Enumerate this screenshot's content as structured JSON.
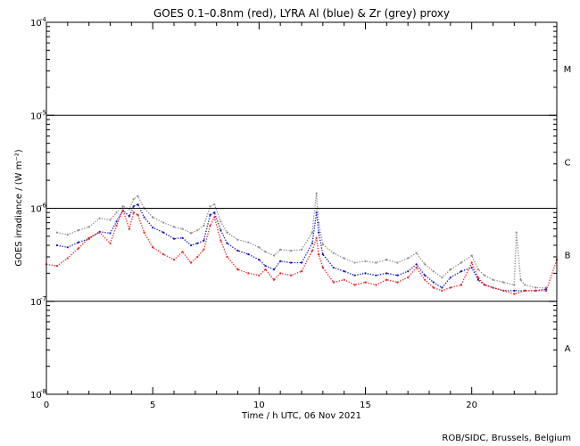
{
  "chart_data": {
    "type": "scatter",
    "title": "GOES 0.1–0.8nm (red), LYRA Al (blue) & Zr (grey) proxy",
    "xlabel": "Time / h UTC, 06 Nov 2021",
    "ylabel": "GOES irradiance / (W m⁻²)",
    "xlim": [
      0,
      24
    ],
    "x_ticks": [
      0,
      5,
      10,
      15,
      20
    ],
    "x_tick_labels": [
      "0",
      "5",
      "10",
      "15",
      "20"
    ],
    "ylim_log10": [
      -8,
      -4
    ],
    "y_ticks_log10": [
      -8,
      -7,
      -6,
      -5,
      -4
    ],
    "y_tick_labels": [
      {
        "base": "10",
        "exp": "-8"
      },
      {
        "base": "10",
        "exp": "-7"
      },
      {
        "base": "10",
        "exp": "-6"
      },
      {
        "base": "10",
        "exp": "-5"
      },
      {
        "base": "10",
        "exp": "-4"
      }
    ],
    "flare_class_lines_log10": [
      -7,
      -6,
      -5
    ],
    "flare_classes": [
      {
        "label": "M",
        "log10": -4.5
      },
      {
        "label": "C",
        "log10": -5.5
      },
      {
        "label": "B",
        "log10": -6.5
      },
      {
        "label": "A",
        "log10": -7.5
      }
    ],
    "series": [
      {
        "name": "GOES 0.1–0.8nm",
        "color": "#e8201c",
        "x": [
          0,
          0.5,
          1.0,
          1.5,
          2.0,
          2.5,
          3.0,
          3.3,
          3.6,
          3.9,
          4.1,
          4.3,
          4.6,
          5.0,
          5.5,
          6.0,
          6.4,
          6.8,
          7.1,
          7.4,
          7.7,
          7.9,
          8.2,
          8.5,
          9.0,
          9.5,
          10.0,
          10.3,
          10.7,
          11.0,
          11.5,
          12.0,
          12.5,
          12.7,
          12.8,
          13.0,
          13.5,
          14.0,
          14.5,
          15.0,
          15.5,
          16.0,
          16.5,
          17.0,
          17.4,
          17.8,
          18.2,
          18.6,
          19.0,
          19.5,
          20.0,
          20.3,
          20.6,
          21.0,
          21.5,
          22.0,
          22.5,
          23.0,
          23.5,
          24.0
        ],
        "values": [
          2.5e-07,
          2.4e-07,
          2.9e-07,
          3.7e-07,
          4.8e-07,
          5.5e-07,
          4.2e-07,
          6.5e-07,
          9.5e-07,
          6e-07,
          9e-07,
          8.5e-07,
          5.5e-07,
          3.8e-07,
          3.2e-07,
          2.8e-07,
          3.4e-07,
          2.6e-07,
          3e-07,
          3.6e-07,
          6.5e-07,
          8e-07,
          4.5e-07,
          3e-07,
          2.2e-07,
          2e-07,
          1.9e-07,
          2.2e-07,
          1.7e-07,
          2e-07,
          1.9e-07,
          2.1e-07,
          3.5e-07,
          4.8e-07,
          3.2e-07,
          2.3e-07,
          1.6e-07,
          1.7e-07,
          1.5e-07,
          1.6e-07,
          1.5e-07,
          1.7e-07,
          1.6e-07,
          1.8e-07,
          2.3e-07,
          1.7e-07,
          1.4e-07,
          1.3e-07,
          1.4e-07,
          1.5e-07,
          2.6e-07,
          1.8e-07,
          1.5e-07,
          1.4e-07,
          1.3e-07,
          1.2e-07,
          1.3e-07,
          1.3e-07,
          1.3e-07,
          2.8e-07
        ]
      },
      {
        "name": "LYRA Al proxy",
        "color": "#1010c8",
        "x": [
          0.5,
          1.0,
          1.5,
          2.0,
          2.5,
          3.0,
          3.3,
          3.6,
          3.9,
          4.1,
          4.3,
          4.6,
          5.0,
          5.5,
          6.0,
          6.4,
          6.8,
          7.1,
          7.4,
          7.7,
          7.9,
          8.2,
          8.5,
          9.0,
          9.5,
          10.0,
          10.3,
          10.7,
          11.0,
          11.5,
          12.0,
          12.5,
          12.7,
          12.8,
          13.0,
          13.5,
          14.0,
          14.5,
          15.0,
          15.5,
          16.0,
          16.5,
          17.0,
          17.4,
          17.8,
          18.2,
          18.6,
          19.0,
          19.5,
          20.0,
          20.3,
          20.6,
          21.0,
          21.5,
          22.0,
          22.5,
          23.0,
          23.5
        ],
        "values": [
          4e-07,
          3.8e-07,
          4.3e-07,
          4.7e-07,
          5.6e-07,
          5.4e-07,
          7.2e-07,
          9.5e-07,
          8.2e-07,
          1.05e-06,
          1.1e-06,
          8e-07,
          6.2e-07,
          5.5e-07,
          4.7e-07,
          4.8e-07,
          4e-07,
          4.2e-07,
          4.5e-07,
          8.5e-07,
          9e-07,
          5.8e-07,
          4.2e-07,
          3.5e-07,
          3.2e-07,
          2.8e-07,
          2.4e-07,
          2.2e-07,
          2.7e-07,
          2.6e-07,
          2.6e-07,
          4.2e-07,
          9e-07,
          5.5e-07,
          3.2e-07,
          2.3e-07,
          2.1e-07,
          1.9e-07,
          2e-07,
          1.9e-07,
          2e-07,
          1.9e-07,
          2.1e-07,
          2.5e-07,
          1.9e-07,
          1.6e-07,
          1.4e-07,
          1.8e-07,
          2.1e-07,
          2.3e-07,
          1.7e-07,
          1.5e-07,
          1.4e-07,
          1.3e-07,
          1.3e-07,
          1.3e-07,
          1.3e-07,
          1.35e-07
        ]
      },
      {
        "name": "LYRA Zr proxy",
        "color": "#8a8a8a",
        "x": [
          0.5,
          1.0,
          1.5,
          2.0,
          2.5,
          3.0,
          3.3,
          3.6,
          3.9,
          4.1,
          4.3,
          4.6,
          5.0,
          5.5,
          6.0,
          6.4,
          6.8,
          7.1,
          7.4,
          7.7,
          7.9,
          8.2,
          8.5,
          9.0,
          9.5,
          10.0,
          10.3,
          10.7,
          11.0,
          11.5,
          12.0,
          12.5,
          12.7,
          12.8,
          13.0,
          13.5,
          14.0,
          14.5,
          15.0,
          15.5,
          16.0,
          16.5,
          17.0,
          17.4,
          17.8,
          18.2,
          18.6,
          19.0,
          19.5,
          20.0,
          20.3,
          20.6,
          21.0,
          21.5,
          22.0,
          22.1,
          22.3,
          22.5,
          23.0,
          23.5
        ],
        "values": [
          5.5e-07,
          5.2e-07,
          5.8e-07,
          6.3e-07,
          7.8e-07,
          7.5e-07,
          9e-07,
          1.05e-06,
          9.8e-07,
          1.25e-06,
          1.35e-06,
          1e-06,
          8e-07,
          7e-07,
          6.3e-07,
          6e-07,
          5.4e-07,
          5.8e-07,
          6.5e-07,
          1.05e-06,
          1.1e-06,
          7.2e-07,
          5.5e-07,
          4.6e-07,
          4.3e-07,
          3.8e-07,
          3.4e-07,
          3.1e-07,
          3.6e-07,
          3.5e-07,
          3.6e-07,
          5.5e-07,
          1.45e-06,
          7e-07,
          4.1e-07,
          3.3e-07,
          2.9e-07,
          2.6e-07,
          2.7e-07,
          2.6e-07,
          2.8e-07,
          2.6e-07,
          2.9e-07,
          3.3e-07,
          2.5e-07,
          2.1e-07,
          1.8e-07,
          2.2e-07,
          2.6e-07,
          3.1e-07,
          2.2e-07,
          1.9e-07,
          1.7e-07,
          1.6e-07,
          1.5e-07,
          5.5e-07,
          1.7e-07,
          1.5e-07,
          1.4e-07,
          1.4e-07
        ]
      }
    ],
    "credit": "ROB/SIDC, Brussels, Belgium"
  },
  "colors": {
    "goes": "#e8201c",
    "lyra_al": "#1010c8",
    "lyra_zr": "#8a8a8a",
    "axes": "#000000",
    "background": "#ffffff"
  }
}
